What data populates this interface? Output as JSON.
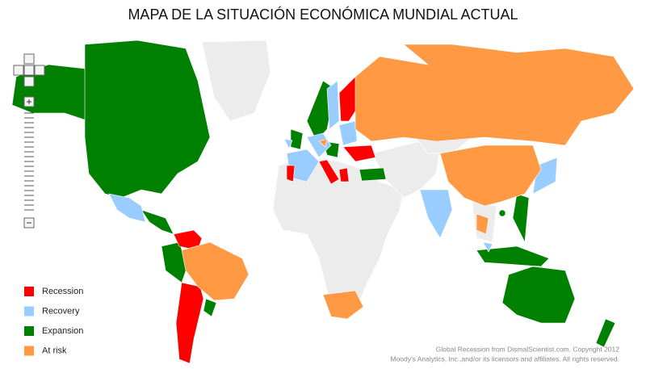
{
  "title": "MAPA DE LA SITUACIÓN ECONÓMICA MUNDIAL ACTUAL",
  "legend": [
    {
      "name": "Recession",
      "color": "#ff0000"
    },
    {
      "name": "Recovery",
      "color": "#99ccff"
    },
    {
      "name": "Expansion",
      "color": "#008000"
    },
    {
      "name": "At risk",
      "color": "#ff9944"
    }
  ],
  "credits": [
    "Global Recession from DismalScientist.com. Copyright 2012",
    "Moody's Analytics, Inc.,and/or its licensors and affiliates. All rights reserved."
  ]
}
